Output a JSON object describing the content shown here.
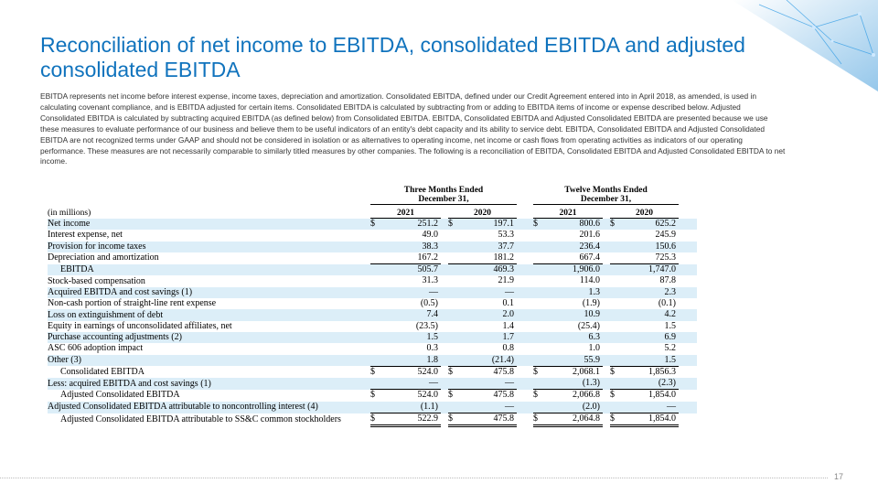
{
  "header": {
    "title": "Reconciliation of net income to EBITDA, consolidated EBITDA and adjusted consolidated EBITDA",
    "description": "EBITDA represents net income before interest expense, income taxes, depreciation and amortization.  Consolidated EBITDA, defined under our Credit Agreement entered into in April 2018, as amended, is used in calculating covenant compliance, and is EBITDA adjusted for certain items.  Consolidated EBITDA is calculated by subtracting from or adding to EBITDA items of income or expense described below.  Adjusted Consolidated EBITDA is calculated by subtracting acquired EBITDA (as defined below) from Consolidated EBITDA. EBITDA, Consolidated EBITDA and Adjusted Consolidated EBITDA are presented because we use these measures to evaluate performance of our business and believe them to be useful indicators of an entity's debt capacity and its ability to service debt.  EBITDA, Consolidated EBITDA and Adjusted Consolidated EBITDA are not recognized terms under GAAP and should not be considered in isolation or as alternatives to operating income, net income or cash flows from operating activities as indicators of our operating performance.  These measures are not necessarily comparable to similarly titled measures by other companies.  The following is a reconciliation of EBITDA, Consolidated EBITDA and Adjusted Consolidated EBITDA to net income."
  },
  "table": {
    "period_headers": [
      [
        "Three Months Ended",
        "December 31,"
      ],
      [
        "Twelve Months Ended",
        "December 31,"
      ]
    ],
    "unit": "(in millions)",
    "years": [
      "2021",
      "2020",
      "2021",
      "2020"
    ],
    "rows": [
      [
        "Net income",
        "$",
        "251.2",
        "$",
        "197.1",
        "$",
        "800.6",
        "$",
        "625.2"
      ],
      [
        "Interest expense, net",
        null,
        "49.0",
        null,
        "53.3",
        null,
        "201.6",
        null,
        "245.9"
      ],
      [
        "Provision for income taxes",
        null,
        "38.3",
        null,
        "37.7",
        null,
        "236.4",
        null,
        "150.6"
      ],
      [
        "Depreciation and amortization",
        null,
        "167.2",
        null,
        "181.2",
        null,
        "667.4",
        null,
        "725.3"
      ],
      [
        "EBITDA",
        null,
        "505.7",
        null,
        "469.3",
        null,
        "1,906.0",
        null,
        "1,747.0"
      ],
      [
        "Stock-based compensation",
        null,
        "31.3",
        null,
        "21.9",
        null,
        "114.0",
        null,
        "87.8"
      ],
      [
        "Acquired EBITDA and cost savings (1)",
        null,
        "—",
        null,
        "—",
        null,
        "1.3",
        null,
        "2.3"
      ],
      [
        "Non-cash portion of straight-line rent expense",
        null,
        "(0.5)",
        null,
        "0.1",
        null,
        "(1.9)",
        null,
        "(0.1)"
      ],
      [
        "Loss on extinguishment of debt",
        null,
        "7.4",
        null,
        "2.0",
        null,
        "10.9",
        null,
        "4.2"
      ],
      [
        "Equity in earnings of unconsolidated affiliates, net",
        null,
        "(23.5)",
        null,
        "1.4",
        null,
        "(25.4)",
        null,
        "1.5"
      ],
      [
        "Purchase accounting adjustments (2)",
        null,
        "1.5",
        null,
        "1.7",
        null,
        "6.3",
        null,
        "6.9"
      ],
      [
        "ASC 606 adoption impact",
        null,
        "0.3",
        null,
        "0.8",
        null,
        "1.0",
        null,
        "5.2"
      ],
      [
        "Other (3)",
        null,
        "1.8",
        null,
        "(21.4)",
        null,
        "55.9",
        null,
        "1.5"
      ],
      [
        "Consolidated EBITDA",
        "$",
        "524.0",
        "$",
        "475.8",
        "$",
        "2,068.1",
        "$",
        "1,856.3"
      ],
      [
        "Less: acquired EBITDA and cost savings (1)",
        null,
        "—",
        null,
        "—",
        null,
        "(1.3)",
        null,
        "(2.3)"
      ],
      [
        "Adjusted Consolidated EBITDA",
        "$",
        "524.0",
        "$",
        "475.8",
        "$",
        "2,066.8",
        "$",
        "1,854.0"
      ],
      [
        "Adjusted Consolidated EBITDA attributable to noncontrolling interest (4)",
        null,
        "(1.1)",
        null,
        "—",
        null,
        "(2.0)",
        null,
        "—"
      ],
      [
        "Adjusted Consolidated EBITDA attributable to SS&C common stockholders",
        "$",
        "522.9",
        "$",
        "475.8",
        "$",
        "2,064.8",
        "$",
        "1,854.0"
      ]
    ]
  },
  "footer": {
    "page_number": "17"
  }
}
